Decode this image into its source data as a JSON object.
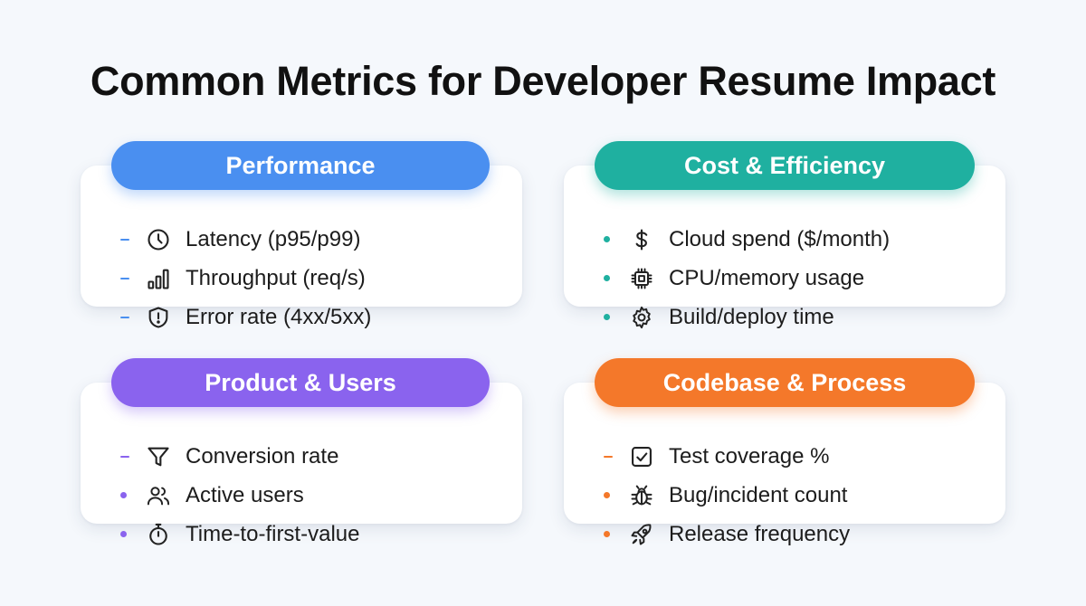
{
  "title": "Common Metrics for Developer Resume Impact",
  "colors": {
    "performance": "#4a8ff0",
    "cost": "#1fb0a0",
    "product": "#8a63ee",
    "codebase": "#f4782a"
  },
  "cards": [
    {
      "heading": "Performance",
      "items": [
        {
          "label": "Latency (p95/p99)",
          "icon": "clock-icon",
          "marker": "dash"
        },
        {
          "label": "Throughput (req/s)",
          "icon": "bar-chart-icon",
          "marker": "dash"
        },
        {
          "label": "Error rate (4xx/5xx)",
          "icon": "shield-alert-icon",
          "marker": "dash"
        }
      ]
    },
    {
      "heading": "Cost & Efficiency",
      "items": [
        {
          "label": "Cloud spend ($/month)",
          "icon": "dollar-icon",
          "marker": "dot"
        },
        {
          "label": "CPU/memory usage",
          "icon": "cpu-chip-icon",
          "marker": "dot"
        },
        {
          "label": "Build/deploy time",
          "icon": "gear-icon",
          "marker": "dot"
        }
      ]
    },
    {
      "heading": "Product & Users",
      "items": [
        {
          "label": "Conversion rate",
          "icon": "funnel-icon",
          "marker": "dash"
        },
        {
          "label": "Active users",
          "icon": "users-icon",
          "marker": "dot"
        },
        {
          "label": "Time-to-first-value",
          "icon": "stopwatch-icon",
          "marker": "dot"
        }
      ]
    },
    {
      "heading": "Codebase & Process",
      "items": [
        {
          "label": "Test coverage %",
          "icon": "checkbox-icon",
          "marker": "dash"
        },
        {
          "label": "Bug/incident count",
          "icon": "bug-icon",
          "marker": "dot"
        },
        {
          "label": "Release frequency",
          "icon": "rocket-icon",
          "marker": "dot"
        }
      ]
    }
  ]
}
